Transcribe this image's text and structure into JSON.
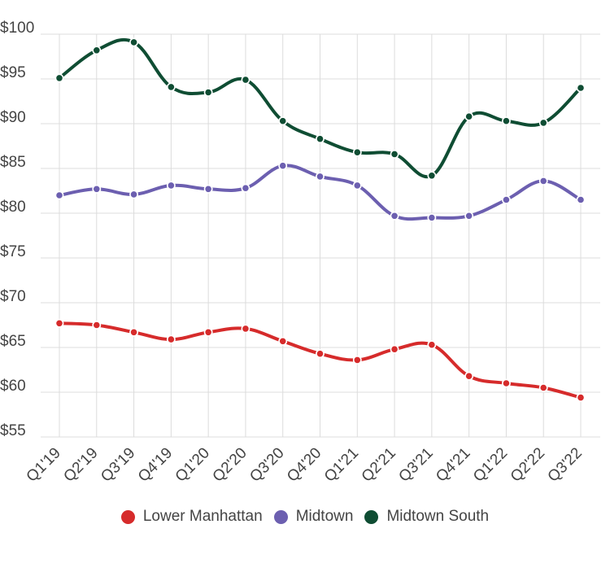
{
  "chart_data": {
    "type": "line",
    "title": "",
    "xlabel": "",
    "ylabel": "",
    "categories": [
      "Q1'19",
      "Q2'19",
      "Q3'19",
      "Q4'19",
      "Q1'20",
      "Q2'20",
      "Q3'20",
      "Q4'20",
      "Q1'21",
      "Q2'21",
      "Q3'21",
      "Q4'21",
      "Q1'22",
      "Q2'22",
      "Q3'22"
    ],
    "ylim": [
      55,
      100
    ],
    "yticks": [
      55,
      60,
      65,
      70,
      75,
      80,
      85,
      90,
      95,
      100
    ],
    "ytick_labels": [
      "$55",
      "$60",
      "$65",
      "$70",
      "$75",
      "$80",
      "$85",
      "$90",
      "$95",
      "$100"
    ],
    "grid": true,
    "legend_position": "bottom-center",
    "series": [
      {
        "name": "Lower Manhattan",
        "color": "#d62b2b",
        "values": [
          67.7,
          67.5,
          66.7,
          65.9,
          66.7,
          67.1,
          65.7,
          64.3,
          63.6,
          64.8,
          65.3,
          61.8,
          61.0,
          60.5,
          59.4
        ]
      },
      {
        "name": "Midtown",
        "color": "#6c5fb0",
        "values": [
          82.0,
          82.7,
          82.1,
          83.1,
          82.7,
          82.8,
          85.3,
          84.1,
          83.1,
          79.7,
          79.5,
          79.7,
          81.5,
          83.6,
          81.5
        ]
      },
      {
        "name": "Midtown South",
        "color": "#0f4d33",
        "values": [
          95.1,
          98.2,
          99.1,
          94.1,
          93.5,
          94.9,
          90.3,
          88.3,
          86.8,
          86.6,
          84.2,
          90.8,
          90.3,
          90.1,
          94.0
        ]
      }
    ]
  }
}
